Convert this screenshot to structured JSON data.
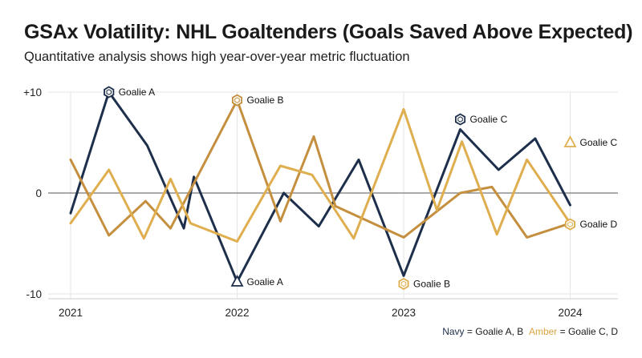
{
  "title": "GSAx Volatility: NHL Goaltenders (Goals Saved Above Expected)",
  "subtitle": "Quantitative analysis shows high year-over-year metric fluctuation",
  "legend_note": {
    "navy_word": "Navy",
    "navy_text": " = Goalie A, B",
    "amber_word": "Amber",
    "amber_text": " = Goalie C, D"
  },
  "colors": {
    "navy": "#1d2f4b",
    "amber": "#d9a441",
    "goldenrod": "#c48f3e",
    "grid": "#e6e6e6",
    "zero_line": "#777777"
  },
  "chart_data": {
    "type": "line",
    "title": "",
    "xlabel": "",
    "ylabel": "",
    "xlim": [
      2021,
      2024.28
    ],
    "ylim": [
      -10,
      10
    ],
    "x_ticks": [
      2021,
      2022,
      2023,
      2024
    ],
    "y_ticks": [
      {
        "value": 10,
        "label": "+10"
      },
      {
        "value": 0,
        "label": "0"
      },
      {
        "value": -10,
        "label": "-10"
      }
    ],
    "grid": true,
    "series": [
      {
        "color": "#1d2f4b",
        "points": [
          [
            2021.0,
            -2.0
          ],
          [
            2021.23,
            10.0
          ],
          [
            2021.46,
            4.7
          ],
          [
            2021.68,
            -3.5
          ],
          [
            2021.74,
            1.6
          ],
          [
            2022.0,
            -8.8
          ],
          [
            2022.28,
            0.0
          ],
          [
            2022.49,
            -3.3
          ],
          [
            2022.73,
            3.3
          ],
          [
            2023.0,
            -8.2
          ],
          [
            2023.34,
            6.3
          ],
          [
            2023.57,
            2.3
          ],
          [
            2023.79,
            5.4
          ],
          [
            2024.0,
            -1.2
          ]
        ],
        "annotations": [
          {
            "x": 2021.23,
            "y": 10.0,
            "label": "Goalie A",
            "marker": "hexagon"
          },
          {
            "x": 2022.0,
            "y": -8.8,
            "label": "Goalie A",
            "marker": "triangle"
          },
          {
            "x": 2023.34,
            "y": 7.3,
            "label": "Goalie C",
            "marker": "hexagon"
          }
        ]
      },
      {
        "color": "#c48f3e",
        "points": [
          [
            2021.0,
            3.3
          ],
          [
            2021.23,
            -4.2
          ],
          [
            2021.45,
            -0.8
          ],
          [
            2021.6,
            -3.5
          ],
          [
            2022.0,
            9.2
          ],
          [
            2022.26,
            -2.8
          ],
          [
            2022.46,
            5.6
          ],
          [
            2022.59,
            -1.3
          ],
          [
            2023.0,
            -4.4
          ],
          [
            2023.34,
            0.0
          ],
          [
            2023.53,
            0.6
          ],
          [
            2023.74,
            -4.4
          ],
          [
            2024.0,
            -3.0
          ]
        ],
        "annotations": [
          {
            "x": 2022.0,
            "y": 9.2,
            "label": "Goalie B",
            "marker": "hexagon"
          }
        ]
      },
      {
        "color": "#dfae4f",
        "points": [
          [
            2021.0,
            -3.0
          ],
          [
            2021.23,
            2.3
          ],
          [
            2021.44,
            -4.5
          ],
          [
            2021.6,
            1.4
          ],
          [
            2021.72,
            -3.0
          ],
          [
            2022.0,
            -4.8
          ],
          [
            2022.26,
            2.7
          ],
          [
            2022.45,
            1.8
          ],
          [
            2022.7,
            -4.5
          ],
          [
            2023.0,
            8.3
          ],
          [
            2023.2,
            -1.7
          ],
          [
            2023.35,
            5.1
          ],
          [
            2023.56,
            -4.1
          ],
          [
            2023.74,
            3.3
          ],
          [
            2024.0,
            -3.0
          ]
        ],
        "annotations": [
          {
            "x": 2023.0,
            "y": -9.0,
            "label": "Goalie B",
            "marker": "hexagon"
          },
          {
            "x": 2024.0,
            "y": 5.0,
            "label": "Goalie C",
            "marker": "triangle"
          },
          {
            "x": 2024.0,
            "y": -3.1,
            "label": "Goalie D",
            "marker": "hexagon"
          }
        ]
      }
    ]
  }
}
